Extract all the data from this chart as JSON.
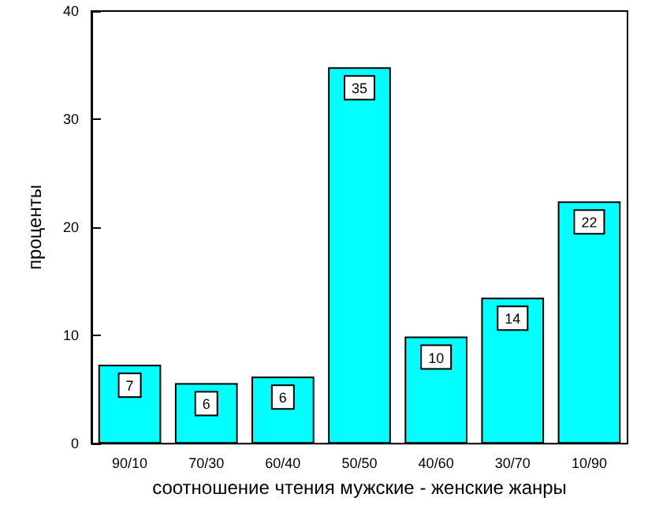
{
  "chart_data": {
    "type": "bar",
    "xlabel": "соотношение чтения мужские - женские жанры",
    "ylabel": "проценты",
    "categories": [
      "90/10",
      "70/30",
      "60/40",
      "50/50",
      "40/60",
      "30/70",
      "10/90"
    ],
    "values": [
      7.3,
      5.6,
      6.2,
      34.8,
      9.9,
      13.5,
      22.4
    ],
    "value_labels": [
      "7",
      "6",
      "6",
      "35",
      "10",
      "14",
      "22"
    ],
    "color": "#00ffff",
    "ylim": [
      0,
      40
    ],
    "yticks": [
      0,
      10,
      20,
      30,
      40
    ],
    "grid": false
  }
}
